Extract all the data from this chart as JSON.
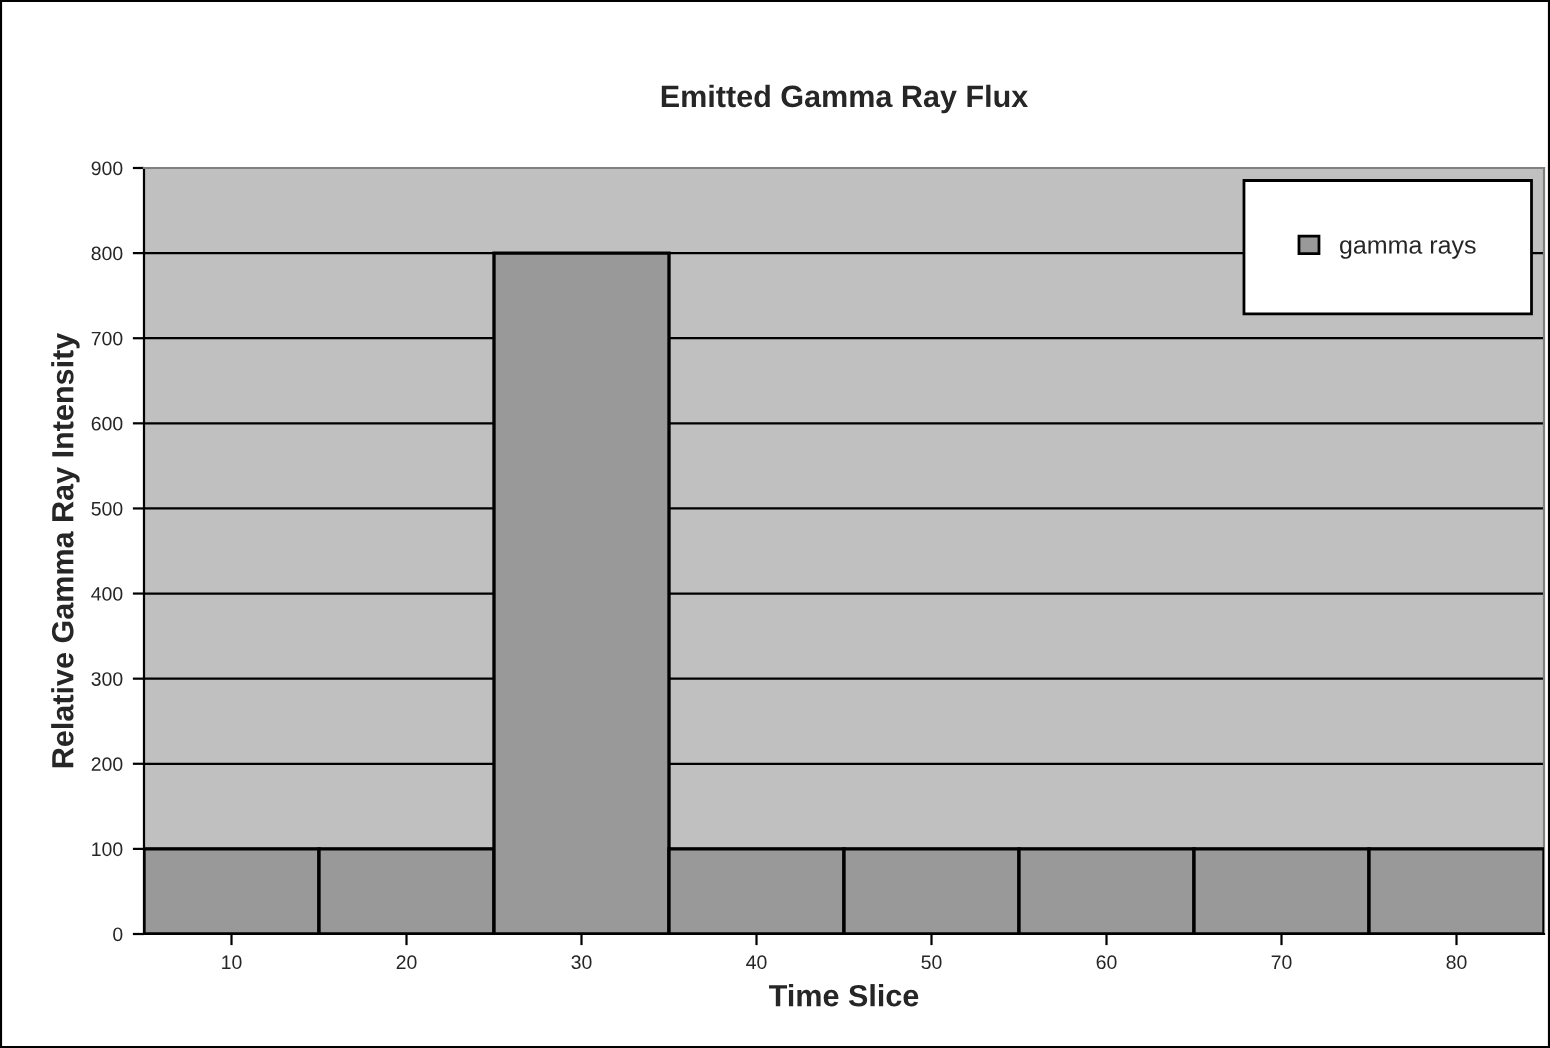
{
  "chart_data": {
    "type": "bar",
    "title": "Emitted Gamma Ray Flux",
    "xlabel": "Time Slice",
    "ylabel": "Relative Gamma Ray Intensity",
    "categories": [
      "10",
      "20",
      "30",
      "40",
      "50",
      "60",
      "70",
      "80"
    ],
    "series": [
      {
        "name": "gamma rays",
        "color": "#999999",
        "values": [
          100,
          100,
          800,
          100,
          100,
          100,
          100,
          100
        ]
      }
    ],
    "ylim": [
      0,
      900
    ],
    "yticks": [
      0,
      100,
      200,
      300,
      400,
      500,
      600,
      700,
      800,
      900
    ],
    "grid": "y",
    "legend": "top right"
  }
}
